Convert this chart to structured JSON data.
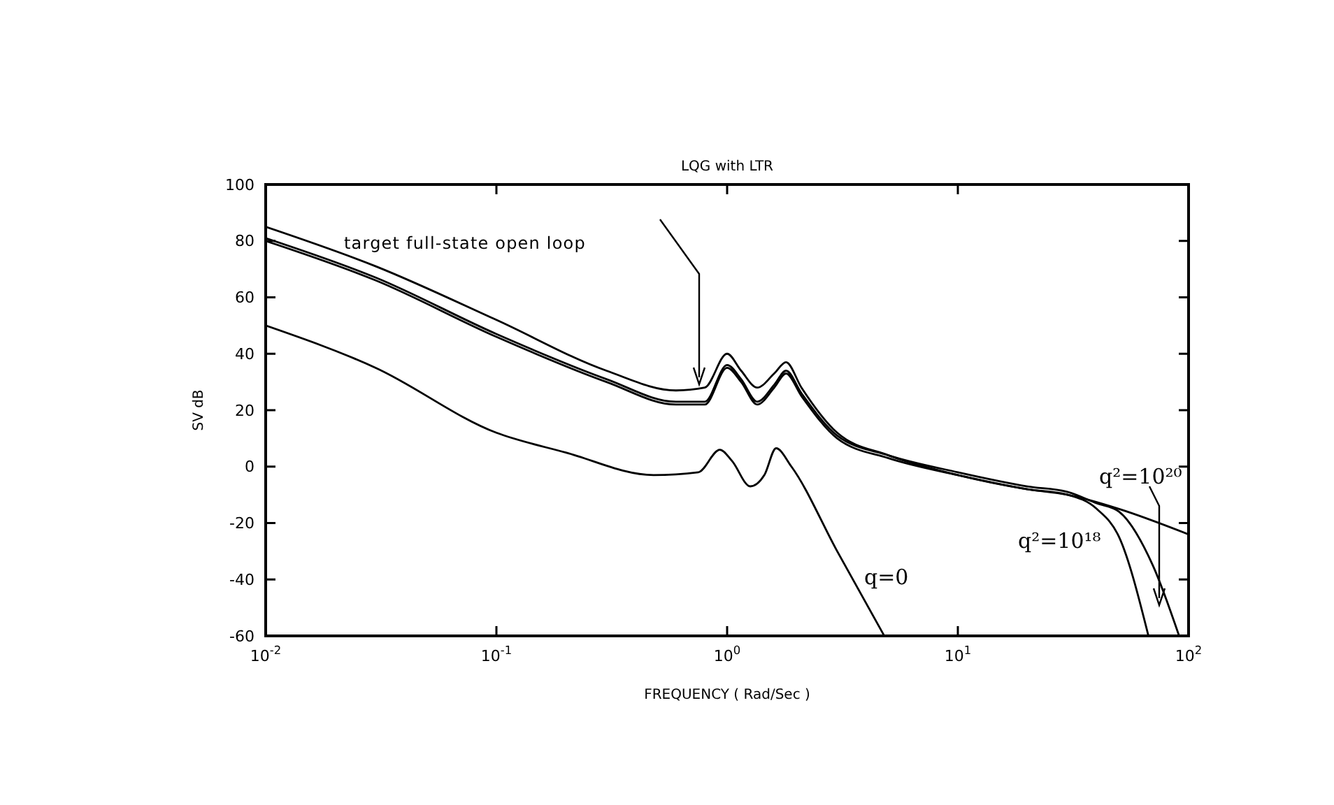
{
  "chart_data": {
    "type": "line",
    "title": "LQG with LTR",
    "xlabel": "FREQUENCY  ( Rad/Sec )",
    "ylabel": "SV dB",
    "log": "x",
    "xlim": [
      0.01,
      100
    ],
    "ylim": [
      -60,
      100
    ],
    "xticks": [
      {
        "value": 0.01,
        "label": "10$^{-2}$"
      },
      {
        "value": 0.1,
        "label": "10$^{-1}$"
      },
      {
        "value": 1,
        "label": "10$^{0}$"
      },
      {
        "value": 10,
        "label": "10$^{1}$"
      },
      {
        "value": 100,
        "label": "10$^{2}$"
      }
    ],
    "yticks": [
      -60,
      -40,
      -20,
      0,
      20,
      40,
      60,
      80,
      100
    ],
    "grid": false,
    "marker": "none",
    "line_style": "solid",
    "series": [
      {
        "name": "target full-state open loop",
        "color": "#000000",
        "x": [
          0.01,
          0.03,
          0.1,
          0.3,
          0.6,
          0.8,
          1.0,
          1.15,
          1.35,
          1.6,
          1.8,
          2.1,
          3,
          5,
          10,
          20,
          30,
          50,
          100
        ],
        "values": [
          85,
          71,
          52,
          34,
          27,
          28,
          40,
          34,
          28,
          33,
          37,
          28,
          12,
          4,
          -3,
          -8,
          -10,
          -15,
          -24
        ]
      },
      {
        "name": "q²=10¹⁸",
        "color": "#000000",
        "x": [
          0.01,
          0.03,
          0.1,
          0.3,
          0.6,
          0.8,
          1.0,
          1.15,
          1.35,
          1.6,
          1.8,
          2.1,
          3,
          5,
          10,
          20,
          30,
          40,
          50,
          67
        ],
        "values": [
          80,
          66,
          46,
          30,
          22,
          22,
          35,
          30,
          22,
          28,
          33,
          25,
          10,
          3,
          -3,
          -8,
          -10,
          -15,
          -25,
          -60
        ]
      },
      {
        "name": "q²=10²⁰",
        "color": "#000000",
        "x": [
          0.01,
          0.03,
          0.1,
          0.3,
          0.6,
          0.8,
          1.0,
          1.15,
          1.35,
          1.6,
          1.8,
          2.1,
          3,
          5,
          10,
          20,
          30,
          40,
          50,
          70,
          91
        ],
        "values": [
          81,
          67,
          47,
          31,
          23,
          23,
          36,
          31,
          23,
          29,
          34,
          26,
          11,
          4,
          -2,
          -7,
          -9,
          -13,
          -16,
          -35,
          -60
        ]
      },
      {
        "name": "q=0",
        "color": "#000000",
        "x": [
          0.01,
          0.03,
          0.1,
          0.2,
          0.48,
          0.75,
          0.93,
          1.05,
          1.26,
          1.45,
          1.63,
          1.9,
          3,
          4.8
        ],
        "values": [
          50,
          35,
          12,
          5,
          -3,
          -2,
          6,
          2,
          -7,
          -3,
          6.5,
          0,
          -30,
          -60
        ]
      }
    ]
  }
}
